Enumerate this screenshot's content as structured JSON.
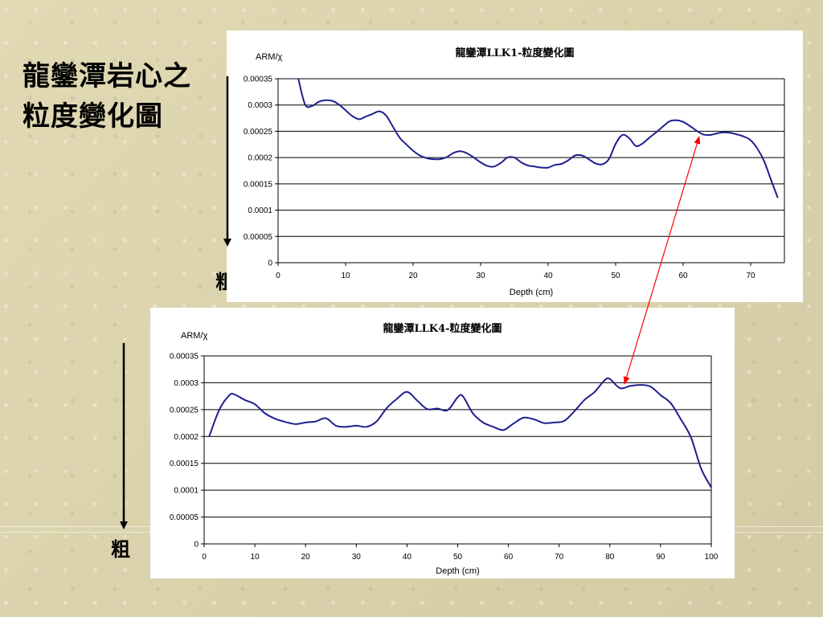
{
  "slide": {
    "title_line1": "龍鑾潭岩心之",
    "title_line2": "粒度變化圖",
    "coarse_label_1": "粗",
    "coarse_label_2": "粗"
  },
  "colors": {
    "series": "#1f1f8f",
    "arrow": "#ff0000",
    "grid": "#000000",
    "background": "#ded6ad"
  },
  "chart_data": [
    {
      "type": "line",
      "title": "龍鑾潭LLK1-粒度變化圖",
      "xlabel": "Depth (cm)",
      "ylabel": "ARM/χ",
      "xlim": [
        0,
        75
      ],
      "ylim": [
        0,
        0.00035
      ],
      "xticks": [
        "0",
        "10",
        "20",
        "30",
        "40",
        "50",
        "60",
        "70"
      ],
      "yticks": [
        "0",
        "0.00005",
        "0.0001",
        "0.00015",
        "0.0002",
        "0.00025",
        "0.0003",
        "0.00035"
      ],
      "grid": "horizontal",
      "series": [
        {
          "x": [
            3,
            4,
            5,
            6,
            7,
            8,
            9,
            10,
            11,
            12,
            13,
            14,
            15,
            16,
            17,
            18,
            19,
            20,
            21,
            22,
            23,
            24,
            25,
            26,
            27,
            28,
            29,
            30,
            31,
            32,
            33,
            34,
            35,
            36,
            37,
            38,
            39,
            40,
            41,
            42,
            43,
            44,
            45,
            46,
            47,
            48,
            49,
            50,
            51,
            52,
            53,
            54,
            55,
            56,
            57,
            58,
            59,
            60,
            61,
            62,
            63,
            64,
            65,
            66,
            67,
            68,
            69,
            70,
            71,
            72,
            73,
            74
          ],
          "y": [
            0.00035,
            0.000301,
            0.000298,
            0.000306,
            0.000309,
            0.000308,
            0.000301,
            0.00029,
            0.000279,
            0.000273,
            0.000278,
            0.000283,
            0.000288,
            0.00028,
            0.000259,
            0.000238,
            0.000225,
            0.000213,
            0.000204,
            0.000199,
            0.000197,
            0.000197,
            0.000201,
            0.000209,
            0.000212,
            0.000208,
            0.0002,
            0.000191,
            0.000184,
            0.000183,
            0.00019,
            0.0002,
            0.0002,
            0.000191,
            0.000185,
            0.000183,
            0.000181,
            0.000181,
            0.000186,
            0.000188,
            0.000195,
            0.000204,
            0.000204,
            0.000197,
            0.000189,
            0.000187,
            0.000197,
            0.000226,
            0.000243,
            0.000237,
            0.000222,
            0.000227,
            0.000238,
            0.000248,
            0.000259,
            0.000269,
            0.000271,
            0.000268,
            0.00026,
            0.000251,
            0.000244,
            0.000243,
            0.000246,
            0.000248,
            0.000247,
            0.000244,
            0.00024,
            0.000233,
            0.000217,
            0.000193,
            0.000158,
            0.000124
          ]
        }
      ]
    },
    {
      "type": "line",
      "title": "龍鑾潭LLK4-粒度變化圖",
      "xlabel": "Depth (cm)",
      "ylabel": "ARM/χ",
      "xlim": [
        0,
        100
      ],
      "ylim": [
        0,
        0.00035
      ],
      "xticks": [
        "0",
        "10",
        "20",
        "30",
        "40",
        "50",
        "60",
        "70",
        "80",
        "90",
        "100"
      ],
      "yticks": [
        "0",
        "0.00005",
        "0.0001",
        "0.00015",
        "0.0002",
        "0.00025",
        "0.0003",
        "0.00035"
      ],
      "grid": "horizontal",
      "series": [
        {
          "x": [
            1,
            3,
            5,
            6,
            8,
            10,
            12,
            14,
            16,
            18,
            20,
            22,
            24,
            26,
            28,
            30,
            32,
            34,
            36,
            38,
            40,
            42,
            44,
            46,
            48,
            50,
            51,
            53,
            55,
            57,
            59,
            61,
            63,
            65,
            67,
            69,
            71,
            73,
            75,
            77,
            79,
            80,
            82,
            84,
            86,
            88,
            90,
            92,
            94,
            96,
            98,
            100
          ],
          "y": [
            0.0002,
            0.00025,
            0.000277,
            0.000278,
            0.000268,
            0.00026,
            0.000243,
            0.000233,
            0.000227,
            0.000223,
            0.000226,
            0.000228,
            0.000234,
            0.00022,
            0.000218,
            0.00022,
            0.000218,
            0.000228,
            0.000253,
            0.00027,
            0.000283,
            0.000267,
            0.000251,
            0.000252,
            0.000249,
            0.000273,
            0.000275,
            0.000243,
            0.000226,
            0.000218,
            0.000212,
            0.000224,
            0.000235,
            0.000232,
            0.000225,
            0.000226,
            0.000229,
            0.000247,
            0.000268,
            0.000283,
            0.000305,
            0.000307,
            0.00029,
            0.000294,
            0.000296,
            0.000293,
            0.000277,
            0.000262,
            0.000232,
            0.000198,
            0.00014,
            0.000105
          ]
        }
      ]
    }
  ]
}
